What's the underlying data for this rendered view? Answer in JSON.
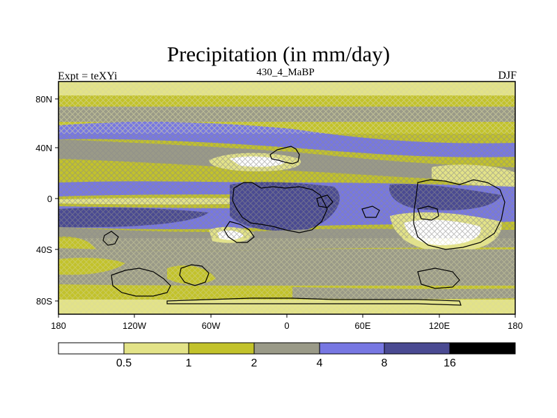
{
  "title": "Precipitation (in mm/day)",
  "left_label": "Expt = teXYi",
  "center_label": "430_4_MaBP",
  "right_label": "DJF",
  "colors": {
    "c0": "#ffffff",
    "c1": "#e3e388",
    "c2": "#c2c22b",
    "c3": "#9a9a88",
    "c4": "#7777e2",
    "c5": "#4a4a92",
    "c6": "#000000",
    "coast": "#000000"
  },
  "x_ticks": [
    "180",
    "120W",
    "60W",
    "0",
    "60E",
    "120E",
    "180"
  ],
  "y_ticks": [
    "80N",
    "40N",
    "0",
    "40S",
    "80S"
  ],
  "colorbar": {
    "levels": [
      "0.5",
      "1",
      "2",
      "4",
      "8",
      "16"
    ]
  }
}
